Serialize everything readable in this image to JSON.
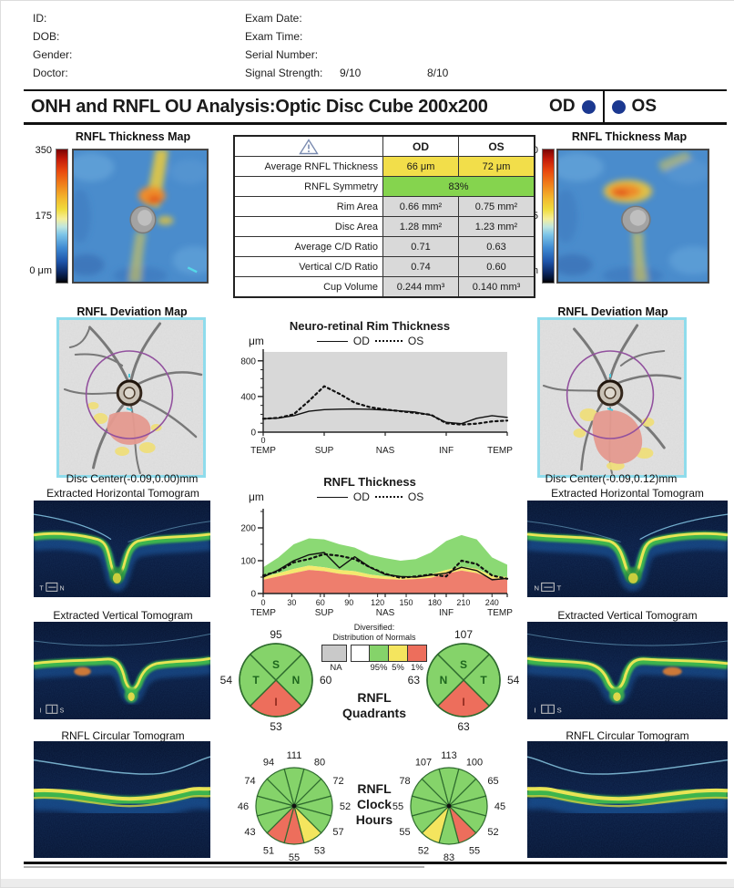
{
  "header": {
    "left_fields": [
      "ID:",
      "DOB:",
      "Gender:",
      "Doctor:"
    ],
    "right_fields": [
      "Exam Date:",
      "Exam Time:",
      "Serial Number:",
      "Signal Strength:"
    ],
    "signal_strength_od": "9/10",
    "signal_strength_os": "8/10"
  },
  "title_bar": {
    "title": "ONH and RNFL OU Analysis:Optic Disc Cube 200x200",
    "od": "OD",
    "os": "OS"
  },
  "summary_table": {
    "col_od": "OD",
    "col_os": "OS",
    "rows": [
      {
        "label": "Average RNFL Thickness",
        "od": "66 μm",
        "os": "72 μm"
      },
      {
        "label": "RNFL Symmetry",
        "value": "83%"
      },
      {
        "label": "Rim Area",
        "od": "0.66 mm²",
        "os": "0.75 mm²"
      },
      {
        "label": "Disc Area",
        "od": "1.28 mm²",
        "os": "1.23 mm²"
      },
      {
        "label": "Average C/D Ratio",
        "od": "0.71",
        "os": "0.63"
      },
      {
        "label": "Vertical C/D Ratio",
        "od": "0.74",
        "os": "0.60"
      },
      {
        "label": "Cup Volume",
        "od": "0.244 mm³",
        "os": "0.140 mm³"
      }
    ]
  },
  "od_panel": {
    "thickness_map_title": "RNFL Thickness Map",
    "scale_labels": [
      "350",
      "175",
      "0 μm"
    ],
    "deviation_map_title": "RNFL Deviation Map",
    "disc_center": "Disc Center(-0.09,0.00)mm",
    "horizontal_tomogram_title": "Extracted Horizontal Tomogram",
    "vertical_tomogram_title": "Extracted Vertical Tomogram",
    "circular_tomogram_title": "RNFL Circular Tomogram",
    "h_marker_left": "T",
    "h_marker_right": "N",
    "v_marker_left": "I",
    "v_marker_right": "S"
  },
  "os_panel": {
    "thickness_map_title": "RNFL Thickness Map",
    "scale_labels": [
      "350",
      "175",
      "0 μm"
    ],
    "deviation_map_title": "RNFL Deviation Map",
    "disc_center": "Disc Center(-0.09,0.12)mm",
    "horizontal_tomogram_title": "Extracted Horizontal Tomogram",
    "vertical_tomogram_title": "Extracted Vertical Tomogram",
    "circular_tomogram_title": "RNFL Circular Tomogram",
    "h_marker_left": "N",
    "h_marker_right": "T",
    "v_marker_left": "I",
    "v_marker_right": "S"
  },
  "normals_legend": {
    "line1": "Diversified:",
    "line2": "Distribution of Normals",
    "na": "NA",
    "p95": "95%",
    "p5": "5%",
    "p1": "1%"
  },
  "center_labels": {
    "quadrants": [
      "RNFL",
      "Quadrants"
    ],
    "clock": [
      "RNFL",
      "Clock",
      "Hours"
    ]
  },
  "quadrants": {
    "od": {
      "top": {
        "letter": "S",
        "value": 95,
        "status": "normal"
      },
      "right": {
        "letter": "N",
        "value": 60,
        "status": "normal"
      },
      "bottom": {
        "letter": "I",
        "value": 53,
        "status": "abnormal"
      },
      "left": {
        "letter": "T",
        "value": 54,
        "status": "normal"
      }
    },
    "os": {
      "top": {
        "letter": "S",
        "value": 107,
        "status": "normal"
      },
      "right": {
        "letter": "T",
        "value": 54,
        "status": "normal"
      },
      "bottom": {
        "letter": "I",
        "value": 63,
        "status": "abnormal"
      },
      "left": {
        "letter": "N",
        "value": 63,
        "status": "normal"
      }
    }
  },
  "clock_hours": {
    "od": {
      "values": [
        111,
        80,
        72,
        52,
        57,
        53,
        55,
        51,
        43,
        46,
        74,
        94
      ],
      "status": [
        "normal",
        "normal",
        "normal",
        "normal",
        "normal",
        "borderline",
        "abnormal",
        "abnormal",
        "normal",
        "normal",
        "normal",
        "normal"
      ]
    },
    "os": {
      "values": [
        113,
        100,
        65,
        45,
        52,
        55,
        83,
        52,
        55,
        55,
        78,
        107
      ],
      "status": [
        "normal",
        "normal",
        "normal",
        "normal",
        "normal",
        "abnormal",
        "normal",
        "borderline",
        "normal",
        "normal",
        "normal",
        "normal"
      ]
    }
  },
  "chart_data": [
    {
      "type": "line",
      "title": "Neuro-retinal Rim Thickness",
      "ylabel": "μm",
      "ylim": [
        0,
        900
      ],
      "yticks": [
        0,
        400,
        800
      ],
      "yminor": [
        100,
        200,
        300,
        500,
        600,
        700
      ],
      "x_step": 16,
      "x_max": 256,
      "origin_label": "0",
      "anchors": [
        {
          "pos": 0,
          "label": "TEMP"
        },
        {
          "pos": 64,
          "label": "SUP"
        },
        {
          "pos": 128,
          "label": "NAS"
        },
        {
          "pos": 192,
          "label": "INF"
        },
        {
          "pos": 256,
          "label": "TEMP"
        }
      ],
      "legend": [
        "OD",
        "OS"
      ],
      "background": "gray",
      "series": [
        {
          "name": "OD",
          "style": "solid",
          "values": [
            150,
            158,
            185,
            235,
            252,
            258,
            260,
            256,
            248,
            238,
            225,
            190,
            110,
            95,
            155,
            185,
            165
          ]
        },
        {
          "name": "OS",
          "style": "dashed",
          "values": [
            150,
            160,
            200,
            350,
            515,
            430,
            330,
            280,
            255,
            235,
            215,
            195,
            100,
            85,
            95,
            120,
            130
          ]
        }
      ]
    },
    {
      "type": "line",
      "title": "RNFL Thickness",
      "ylabel": "μm",
      "ylim": [
        0,
        250
      ],
      "yticks": [
        0,
        100,
        200
      ],
      "yminor": [
        50,
        150,
        250
      ],
      "x_step": 16,
      "x_max": 256,
      "xticks": [
        0,
        30,
        60,
        90,
        120,
        150,
        180,
        210,
        240
      ],
      "anchors": [
        {
          "pos": 0,
          "label": "TEMP"
        },
        {
          "pos": 64,
          "label": "SUP"
        },
        {
          "pos": 128,
          "label": "NAS"
        },
        {
          "pos": 192,
          "label": "INF"
        },
        {
          "pos": 256,
          "label": "TEMP"
        }
      ],
      "legend": [
        "OD",
        "OS"
      ],
      "normative_bands": {
        "green_top": [
          80,
          110,
          150,
          168,
          165,
          150,
          140,
          118,
          108,
          100,
          105,
          125,
          160,
          178,
          165,
          110,
          88
        ],
        "yellow_top": [
          50,
          62,
          75,
          85,
          80,
          72,
          68,
          58,
          52,
          50,
          52,
          58,
          72,
          82,
          75,
          55,
          50
        ],
        "red_top": [
          42,
          52,
          62,
          72,
          68,
          60,
          56,
          48,
          44,
          42,
          44,
          48,
          60,
          70,
          62,
          46,
          42
        ]
      },
      "series": [
        {
          "name": "OD",
          "style": "solid",
          "values": [
            50,
            72,
            100,
            118,
            125,
            78,
            112,
            80,
            58,
            52,
            50,
            56,
            62,
            80,
            70,
            42,
            46
          ]
        },
        {
          "name": "OS",
          "style": "dashed",
          "values": [
            55,
            68,
            95,
            105,
            120,
            115,
            105,
            80,
            60,
            48,
            52,
            58,
            52,
            100,
            90,
            55,
            45
          ]
        }
      ]
    }
  ],
  "colors": {
    "navy": "#1b3890",
    "normal_green": "#85d36a",
    "borderline_yellow": "#f4e55e",
    "abnormal_red": "#ed6e5c",
    "na_gray": "#c9c9c9",
    "cell_yellow": "#f2de4a",
    "cell_green": "#85d44e",
    "cell_gray": "#d9d9d9",
    "deviation_border_cyan": "#8fdcec"
  }
}
